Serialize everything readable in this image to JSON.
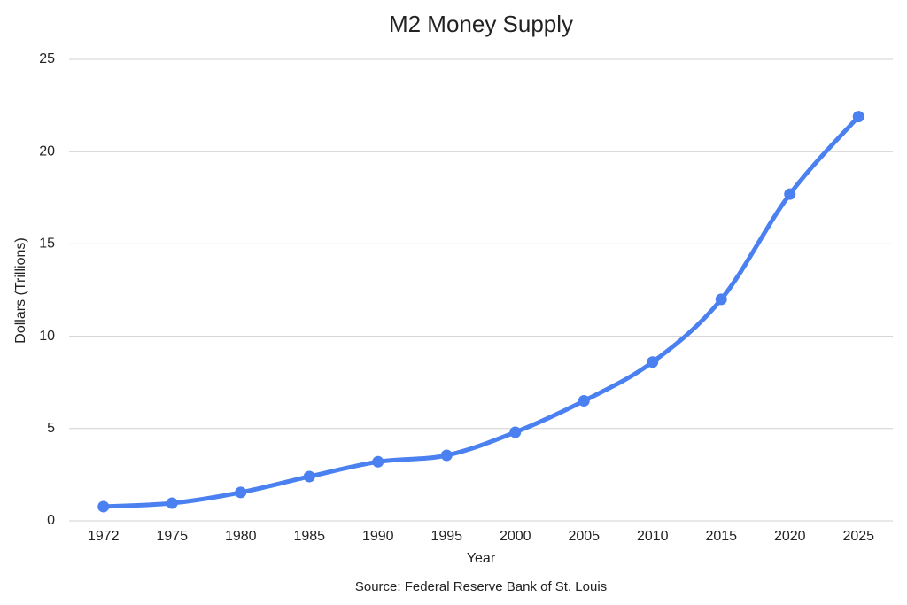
{
  "chart_data": {
    "type": "line",
    "title": "M2 Money Supply",
    "x_label": "Year",
    "y_label": "Dollars (Trillions)",
    "source": "Source: Federal Reserve Bank of St. Louis",
    "categories": [
      "1972",
      "1975",
      "1980",
      "1985",
      "1990",
      "1995",
      "2000",
      "2005",
      "2010",
      "2015",
      "2020",
      "2025"
    ],
    "series": [
      {
        "name": "M2",
        "color": "#4a80f0",
        "values": [
          0.77,
          0.96,
          1.54,
          2.4,
          3.2,
          3.55,
          4.8,
          6.5,
          8.6,
          12.0,
          17.7,
          21.9
        ]
      }
    ],
    "ylim": [
      0,
      25
    ],
    "yticks": [
      0,
      5,
      10,
      15,
      20,
      25
    ],
    "grid": true
  }
}
